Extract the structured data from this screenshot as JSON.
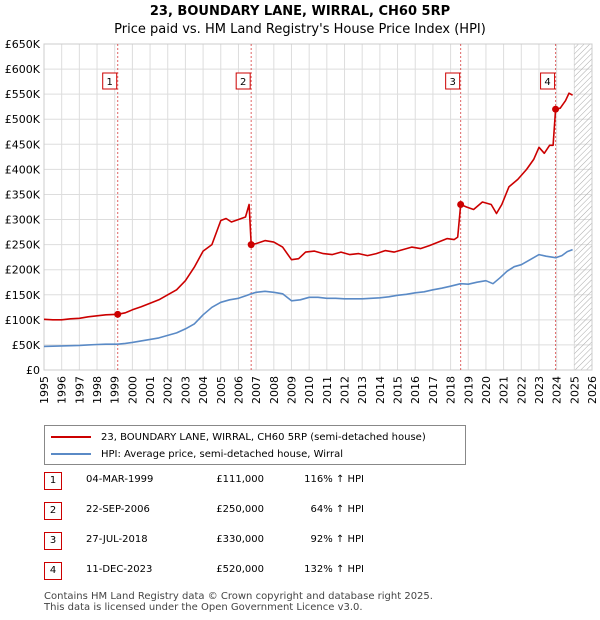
{
  "title": "23, BOUNDARY LANE, WIRRAL, CH60 5RP",
  "subtitle": "Price paid vs. HM Land Registry's House Price Index (HPI)",
  "colors": {
    "property": "#cc0000",
    "hpi": "#5a8ac6",
    "grid": "#dddddd",
    "marker_line": "#cc0000",
    "hatch": "#aaaaaa"
  },
  "legend": {
    "property_label": "23, BOUNDARY LANE, WIRRAL, CH60 5RP (semi-detached house)",
    "hpi_label": "HPI: Average price, semi-detached house, Wirral"
  },
  "sales": [
    {
      "num": "1",
      "date": "04-MAR-1999",
      "price": "£111,000",
      "hpi": "116% ↑ HPI"
    },
    {
      "num": "2",
      "date": "22-SEP-2006",
      "price": "£250,000",
      "hpi": "64% ↑ HPI"
    },
    {
      "num": "3",
      "date": "27-JUL-2018",
      "price": "£330,000",
      "hpi": "92% ↑ HPI"
    },
    {
      "num": "4",
      "date": "11-DEC-2023",
      "price": "£520,000",
      "hpi": "132% ↑ HPI"
    }
  ],
  "footer": {
    "line1": "Contains HM Land Registry data © Crown copyright and database right 2025.",
    "line2": "This data is licensed under the Open Government Licence v3.0."
  },
  "chart_data": {
    "type": "line",
    "title": "23, BOUNDARY LANE, WIRRAL, CH60 5RP",
    "subtitle": "Price paid vs. HM Land Registry's House Price Index (HPI)",
    "xlim": [
      1995,
      2026
    ],
    "ylim": [
      0,
      650000
    ],
    "grid": true,
    "x_ticks": [
      1995,
      1996,
      1997,
      1998,
      1999,
      2000,
      2001,
      2002,
      2003,
      2004,
      2005,
      2006,
      2007,
      2008,
      2009,
      2010,
      2011,
      2012,
      2013,
      2014,
      2015,
      2016,
      2017,
      2018,
      2019,
      2020,
      2021,
      2022,
      2023,
      2024,
      2025,
      2026
    ],
    "y_ticks": [
      {
        "value": 0,
        "label": "£0"
      },
      {
        "value": 50000,
        "label": "£50K"
      },
      {
        "value": 100000,
        "label": "£100K"
      },
      {
        "value": 150000,
        "label": "£150K"
      },
      {
        "value": 200000,
        "label": "£200K"
      },
      {
        "value": 250000,
        "label": "£250K"
      },
      {
        "value": 300000,
        "label": "£300K"
      },
      {
        "value": 350000,
        "label": "£350K"
      },
      {
        "value": 400000,
        "label": "£400K"
      },
      {
        "value": 450000,
        "label": "£450K"
      },
      {
        "value": 500000,
        "label": "£500K"
      },
      {
        "value": 550000,
        "label": "£550K"
      },
      {
        "value": 600000,
        "label": "£600K"
      },
      {
        "value": 650000,
        "label": "£650K"
      }
    ],
    "forecast_start": 2025.0,
    "series": [
      {
        "name": "23, BOUNDARY LANE, WIRRAL, CH60 5RP (semi-detached house)",
        "x": [
          1995.0,
          1995.5,
          1996.0,
          1996.5,
          1997.0,
          1997.5,
          1998.0,
          1998.5,
          1999.17,
          1999.6,
          2000.0,
          2000.5,
          2001.0,
          2001.5,
          2002.0,
          2002.5,
          2003.0,
          2003.5,
          2004.0,
          2004.5,
          2005.0,
          2005.3,
          2005.6,
          2006.0,
          2006.4,
          2006.6,
          2006.72,
          2007.0,
          2007.5,
          2008.0,
          2008.5,
          2009.0,
          2009.4,
          2009.8,
          2010.3,
          2010.8,
          2011.3,
          2011.8,
          2012.3,
          2012.8,
          2013.3,
          2013.8,
          2014.3,
          2014.8,
          2015.3,
          2015.8,
          2016.3,
          2016.8,
          2017.3,
          2017.8,
          2018.2,
          2018.4,
          2018.57,
          2018.9,
          2019.3,
          2019.8,
          2020.3,
          2020.6,
          2020.9,
          2021.3,
          2021.8,
          2022.3,
          2022.7,
          2023.0,
          2023.3,
          2023.6,
          2023.8,
          2023.94,
          2024.2,
          2024.5,
          2024.7,
          2024.9
        ],
        "values": [
          101000,
          100000,
          100000,
          102000,
          103000,
          106000,
          108000,
          110000,
          111000,
          114000,
          120000,
          126000,
          133000,
          140000,
          150000,
          160000,
          178000,
          205000,
          237000,
          250000,
          298000,
          302000,
          295000,
          300000,
          305000,
          330000,
          250000,
          252000,
          258000,
          255000,
          245000,
          220000,
          222000,
          235000,
          237000,
          232000,
          230000,
          235000,
          230000,
          232000,
          228000,
          232000,
          238000,
          235000,
          240000,
          245000,
          242000,
          248000,
          255000,
          262000,
          260000,
          265000,
          330000,
          325000,
          320000,
          335000,
          330000,
          312000,
          330000,
          365000,
          380000,
          400000,
          420000,
          444000,
          432000,
          448000,
          448000,
          520000,
          522000,
          537000,
          552000,
          548000
        ]
      },
      {
        "name": "HPI: Average price, semi-detached house, Wirral",
        "x": [
          1995.0,
          1995.5,
          1996.0,
          1996.5,
          1997.0,
          1997.5,
          1998.0,
          1998.5,
          1999.17,
          1999.6,
          2000.0,
          2000.5,
          2001.0,
          2001.5,
          2002.0,
          2002.5,
          2003.0,
          2003.5,
          2004.0,
          2004.5,
          2005.0,
          2005.5,
          2006.0,
          2006.5,
          2006.72,
          2007.0,
          2007.5,
          2008.0,
          2008.5,
          2009.0,
          2009.5,
          2010.0,
          2010.5,
          2011.0,
          2011.5,
          2012.0,
          2012.5,
          2013.0,
          2013.5,
          2014.0,
          2014.5,
          2015.0,
          2015.5,
          2016.0,
          2016.5,
          2017.0,
          2017.5,
          2018.0,
          2018.57,
          2019.0,
          2019.5,
          2020.0,
          2020.4,
          2020.8,
          2021.2,
          2021.6,
          2022.0,
          2022.5,
          2023.0,
          2023.4,
          2023.94,
          2024.3,
          2024.6,
          2024.9
        ],
        "values": [
          47000,
          47500,
          48000,
          48500,
          49000,
          50000,
          50800,
          51500,
          51500,
          53000,
          55000,
          58000,
          61000,
          64000,
          69000,
          74000,
          82000,
          92000,
          110000,
          125000,
          135000,
          140000,
          143000,
          149000,
          152000,
          155000,
          157000,
          155000,
          152000,
          138000,
          140000,
          145000,
          145000,
          143000,
          143000,
          142000,
          142000,
          142000,
          143000,
          144000,
          146000,
          149000,
          151000,
          154000,
          156000,
          160000,
          163000,
          167000,
          172000,
          171000,
          175000,
          178000,
          172000,
          184000,
          197000,
          206000,
          210000,
          220000,
          230000,
          227000,
          224000,
          228000,
          236000,
          240000
        ]
      }
    ],
    "annotations": [
      {
        "label": "1",
        "x": 1999.17,
        "value": 111000
      },
      {
        "label": "2",
        "x": 2006.72,
        "value": 250000
      },
      {
        "label": "3",
        "x": 2018.57,
        "value": 330000
      },
      {
        "label": "4",
        "x": 2023.94,
        "value": 520000
      }
    ]
  }
}
